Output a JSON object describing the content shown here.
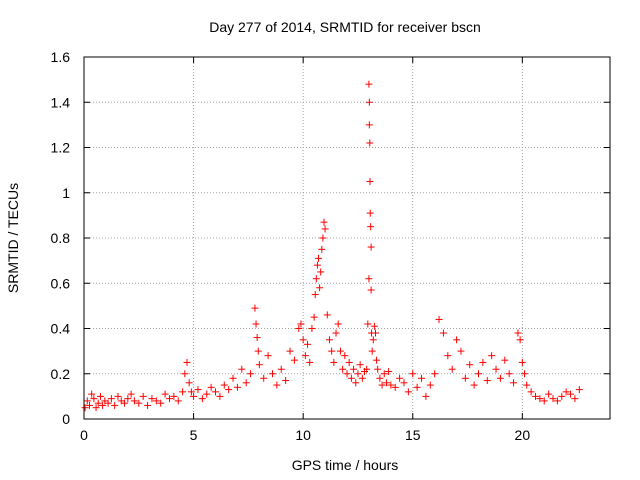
{
  "chart_data": {
    "type": "scatter",
    "title": "Day 277 of 2014, SRMTID for receiver bscn",
    "xlabel": "GPS time / hours",
    "ylabel": "SRMTID / TECUs",
    "xlim": [
      0,
      24
    ],
    "ylim": [
      0,
      1.6
    ],
    "x_ticks": [
      0,
      5,
      10,
      15,
      20
    ],
    "x_tick_labels": [
      "0",
      "5",
      "10",
      "15",
      "20"
    ],
    "y_ticks": [
      0,
      0.2,
      0.4,
      0.6,
      0.8,
      1.0,
      1.2,
      1.4,
      1.6
    ],
    "y_tick_labels": [
      "0",
      "0.2",
      "0.4",
      "0.6",
      "0.8",
      "1",
      "1.2",
      "1.4",
      "1.6"
    ],
    "grid": true,
    "marker": "+",
    "color": "#ff0000",
    "series": [
      {
        "name": "SRMTID",
        "x": [
          0.05,
          0.15,
          0.25,
          0.35,
          0.45,
          0.55,
          0.65,
          0.75,
          0.85,
          0.95,
          1.1,
          1.25,
          1.4,
          1.55,
          1.7,
          1.85,
          2.0,
          2.15,
          2.3,
          2.5,
          2.7,
          2.9,
          3.1,
          3.3,
          3.5,
          3.7,
          3.9,
          4.1,
          4.3,
          4.5,
          4.6,
          4.7,
          4.8,
          4.9,
          5.0,
          5.2,
          5.4,
          5.6,
          5.8,
          6.0,
          6.2,
          6.4,
          6.6,
          6.8,
          7.0,
          7.2,
          7.4,
          7.6,
          7.8,
          7.85,
          7.9,
          7.95,
          8.0,
          8.2,
          8.4,
          8.6,
          8.8,
          9.0,
          9.2,
          9.4,
          9.6,
          9.8,
          9.9,
          10.0,
          10.1,
          10.2,
          10.3,
          10.4,
          10.5,
          10.55,
          10.6,
          10.65,
          10.7,
          10.75,
          10.8,
          10.85,
          10.9,
          10.95,
          11.0,
          11.1,
          11.2,
          11.3,
          11.4,
          11.5,
          11.6,
          11.7,
          11.8,
          11.9,
          12.0,
          12.1,
          12.2,
          12.3,
          12.4,
          12.5,
          12.6,
          12.7,
          12.8,
          12.9,
          12.95,
          13.0,
          13.0,
          13.02,
          13.02,
          13.04,
          13.05,
          13.06,
          13.08,
          13.1,
          13.1,
          13.12,
          13.15,
          13.2,
          13.25,
          13.3,
          13.35,
          13.4,
          13.5,
          13.6,
          13.7,
          13.8,
          13.9,
          14.0,
          14.2,
          14.4,
          14.6,
          14.8,
          15.0,
          15.2,
          15.4,
          15.6,
          15.8,
          16.0,
          16.2,
          16.4,
          16.6,
          16.8,
          17.0,
          17.2,
          17.4,
          17.6,
          17.8,
          18.0,
          18.2,
          18.4,
          18.6,
          18.8,
          19.0,
          19.2,
          19.4,
          19.6,
          19.8,
          19.9,
          20.0,
          20.1,
          20.2,
          20.4,
          20.6,
          20.8,
          21.0,
          21.2,
          21.4,
          21.6,
          21.8,
          22.0,
          22.2,
          22.4,
          22.6
        ],
        "y": [
          0.05,
          0.08,
          0.06,
          0.11,
          0.09,
          0.05,
          0.07,
          0.1,
          0.06,
          0.08,
          0.07,
          0.09,
          0.06,
          0.1,
          0.08,
          0.07,
          0.09,
          0.11,
          0.08,
          0.07,
          0.1,
          0.06,
          0.09,
          0.08,
          0.07,
          0.11,
          0.09,
          0.1,
          0.08,
          0.12,
          0.2,
          0.25,
          0.16,
          0.12,
          0.1,
          0.13,
          0.09,
          0.11,
          0.14,
          0.12,
          0.1,
          0.15,
          0.13,
          0.18,
          0.14,
          0.22,
          0.16,
          0.2,
          0.49,
          0.42,
          0.36,
          0.3,
          0.24,
          0.18,
          0.28,
          0.2,
          0.15,
          0.22,
          0.17,
          0.3,
          0.26,
          0.4,
          0.42,
          0.35,
          0.28,
          0.33,
          0.25,
          0.4,
          0.45,
          0.55,
          0.62,
          0.68,
          0.71,
          0.58,
          0.65,
          0.75,
          0.8,
          0.87,
          0.84,
          0.46,
          0.35,
          0.3,
          0.25,
          0.38,
          0.42,
          0.3,
          0.22,
          0.28,
          0.2,
          0.25,
          0.18,
          0.22,
          0.16,
          0.2,
          0.24,
          0.18,
          0.21,
          0.22,
          0.42,
          0.62,
          1.48,
          1.4,
          1.3,
          1.22,
          1.05,
          0.91,
          0.85,
          0.76,
          0.57,
          0.38,
          0.3,
          0.35,
          0.41,
          0.38,
          0.26,
          0.22,
          0.18,
          0.15,
          0.2,
          0.16,
          0.21,
          0.15,
          0.14,
          0.18,
          0.16,
          0.12,
          0.2,
          0.14,
          0.18,
          0.1,
          0.15,
          0.2,
          0.44,
          0.38,
          0.28,
          0.22,
          0.35,
          0.3,
          0.18,
          0.24,
          0.15,
          0.2,
          0.25,
          0.17,
          0.28,
          0.22,
          0.18,
          0.26,
          0.2,
          0.16,
          0.38,
          0.35,
          0.25,
          0.2,
          0.15,
          0.12,
          0.1,
          0.09,
          0.08,
          0.11,
          0.09,
          0.08,
          0.1,
          0.12,
          0.11,
          0.09,
          0.13
        ]
      }
    ]
  }
}
